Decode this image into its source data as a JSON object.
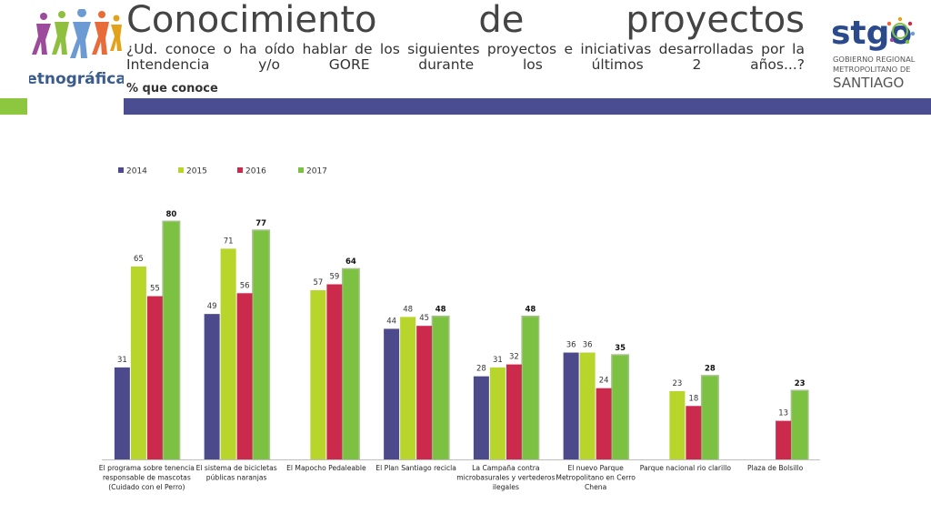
{
  "header": {
    "title": "Conocimiento de proyectos",
    "subtitle": "¿Ud. conoce o ha oído hablar de los siguientes proyectos e iniciativas desarrolladas por la Intendencia y/o GORE durante los últimos 2 años...?",
    "subtitle_note": "% que conoce"
  },
  "logos": {
    "left_text": "etnográfica",
    "right_text": "stgo",
    "right_line1": "GOBIERNO REGIONAL",
    "right_line2": "METROPOLITANO DE",
    "right_line3": "SANTIAGO"
  },
  "colors": {
    "s2014": "#4d4a8c",
    "s2015": "#b7d52a",
    "s2016": "#cc2a4d",
    "s2017": "#7dc142",
    "band_green": "#8dc63f",
    "band_purple": "#4a4d8f"
  },
  "chart_data": {
    "type": "bar",
    "legend_position": "top-left",
    "categories": [
      [
        "El programa sobre tenencia",
        "responsable de mascotas",
        "(Cuidado con el Perro)"
      ],
      [
        "El sistema de bicicletas",
        "públicas naranjas"
      ],
      [
        "El Mapocho Pedaleable"
      ],
      [
        "El Plan Santiago recicla"
      ],
      [
        "La Campaña contra",
        "microbasurales y vertederos",
        "ilegales"
      ],
      [
        "El nuevo Parque",
        "Metropolitano en Cerro",
        "Chena"
      ],
      [
        "Parque nacional rio clarillo"
      ],
      [
        "Plaza de Bolsillo"
      ]
    ],
    "series": [
      {
        "name": "2014",
        "values": [
          31,
          49,
          null,
          44,
          28,
          36,
          null,
          null
        ]
      },
      {
        "name": "2015",
        "values": [
          65,
          71,
          57,
          48,
          31,
          36,
          23,
          null
        ]
      },
      {
        "name": "2016",
        "values": [
          55,
          56,
          59,
          45,
          32,
          24,
          18,
          13
        ]
      },
      {
        "name": "2017",
        "values": [
          80,
          77,
          64,
          48,
          48,
          35,
          28,
          23
        ]
      }
    ],
    "ylim": [
      0,
      80
    ],
    "grid": false
  }
}
